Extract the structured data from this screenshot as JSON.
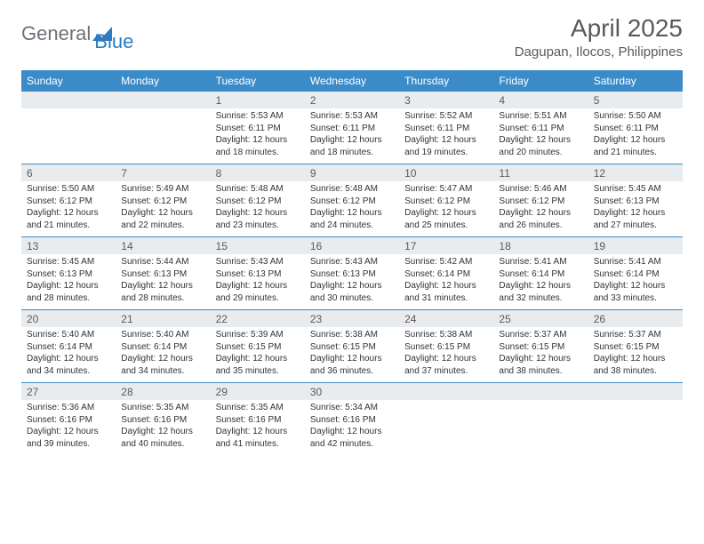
{
  "brand": {
    "name1": "General",
    "name2": "Blue"
  },
  "title": "April 2025",
  "location": "Dagupan, Ilocos, Philippines",
  "colors": {
    "header_bg": "#3b8bc9",
    "header_text": "#ffffff",
    "daynum_bg": "#e9ecef",
    "text": "#5a5a5a",
    "accent": "#2c7bbf",
    "border": "#3b8bc9"
  },
  "weekdays": [
    "Sunday",
    "Monday",
    "Tuesday",
    "Wednesday",
    "Thursday",
    "Friday",
    "Saturday"
  ],
  "weeks": [
    [
      null,
      null,
      {
        "n": "1",
        "sr": "5:53 AM",
        "ss": "6:11 PM",
        "dl": "12 hours and 18 minutes."
      },
      {
        "n": "2",
        "sr": "5:53 AM",
        "ss": "6:11 PM",
        "dl": "12 hours and 18 minutes."
      },
      {
        "n": "3",
        "sr": "5:52 AM",
        "ss": "6:11 PM",
        "dl": "12 hours and 19 minutes."
      },
      {
        "n": "4",
        "sr": "5:51 AM",
        "ss": "6:11 PM",
        "dl": "12 hours and 20 minutes."
      },
      {
        "n": "5",
        "sr": "5:50 AM",
        "ss": "6:11 PM",
        "dl": "12 hours and 21 minutes."
      }
    ],
    [
      {
        "n": "6",
        "sr": "5:50 AM",
        "ss": "6:12 PM",
        "dl": "12 hours and 21 minutes."
      },
      {
        "n": "7",
        "sr": "5:49 AM",
        "ss": "6:12 PM",
        "dl": "12 hours and 22 minutes."
      },
      {
        "n": "8",
        "sr": "5:48 AM",
        "ss": "6:12 PM",
        "dl": "12 hours and 23 minutes."
      },
      {
        "n": "9",
        "sr": "5:48 AM",
        "ss": "6:12 PM",
        "dl": "12 hours and 24 minutes."
      },
      {
        "n": "10",
        "sr": "5:47 AM",
        "ss": "6:12 PM",
        "dl": "12 hours and 25 minutes."
      },
      {
        "n": "11",
        "sr": "5:46 AM",
        "ss": "6:12 PM",
        "dl": "12 hours and 26 minutes."
      },
      {
        "n": "12",
        "sr": "5:45 AM",
        "ss": "6:13 PM",
        "dl": "12 hours and 27 minutes."
      }
    ],
    [
      {
        "n": "13",
        "sr": "5:45 AM",
        "ss": "6:13 PM",
        "dl": "12 hours and 28 minutes."
      },
      {
        "n": "14",
        "sr": "5:44 AM",
        "ss": "6:13 PM",
        "dl": "12 hours and 28 minutes."
      },
      {
        "n": "15",
        "sr": "5:43 AM",
        "ss": "6:13 PM",
        "dl": "12 hours and 29 minutes."
      },
      {
        "n": "16",
        "sr": "5:43 AM",
        "ss": "6:13 PM",
        "dl": "12 hours and 30 minutes."
      },
      {
        "n": "17",
        "sr": "5:42 AM",
        "ss": "6:14 PM",
        "dl": "12 hours and 31 minutes."
      },
      {
        "n": "18",
        "sr": "5:41 AM",
        "ss": "6:14 PM",
        "dl": "12 hours and 32 minutes."
      },
      {
        "n": "19",
        "sr": "5:41 AM",
        "ss": "6:14 PM",
        "dl": "12 hours and 33 minutes."
      }
    ],
    [
      {
        "n": "20",
        "sr": "5:40 AM",
        "ss": "6:14 PM",
        "dl": "12 hours and 34 minutes."
      },
      {
        "n": "21",
        "sr": "5:40 AM",
        "ss": "6:14 PM",
        "dl": "12 hours and 34 minutes."
      },
      {
        "n": "22",
        "sr": "5:39 AM",
        "ss": "6:15 PM",
        "dl": "12 hours and 35 minutes."
      },
      {
        "n": "23",
        "sr": "5:38 AM",
        "ss": "6:15 PM",
        "dl": "12 hours and 36 minutes."
      },
      {
        "n": "24",
        "sr": "5:38 AM",
        "ss": "6:15 PM",
        "dl": "12 hours and 37 minutes."
      },
      {
        "n": "25",
        "sr": "5:37 AM",
        "ss": "6:15 PM",
        "dl": "12 hours and 38 minutes."
      },
      {
        "n": "26",
        "sr": "5:37 AM",
        "ss": "6:15 PM",
        "dl": "12 hours and 38 minutes."
      }
    ],
    [
      {
        "n": "27",
        "sr": "5:36 AM",
        "ss": "6:16 PM",
        "dl": "12 hours and 39 minutes."
      },
      {
        "n": "28",
        "sr": "5:35 AM",
        "ss": "6:16 PM",
        "dl": "12 hours and 40 minutes."
      },
      {
        "n": "29",
        "sr": "5:35 AM",
        "ss": "6:16 PM",
        "dl": "12 hours and 41 minutes."
      },
      {
        "n": "30",
        "sr": "5:34 AM",
        "ss": "6:16 PM",
        "dl": "12 hours and 42 minutes."
      },
      null,
      null,
      null
    ]
  ],
  "labels": {
    "sunrise": "Sunrise:",
    "sunset": "Sunset:",
    "daylight": "Daylight:"
  }
}
